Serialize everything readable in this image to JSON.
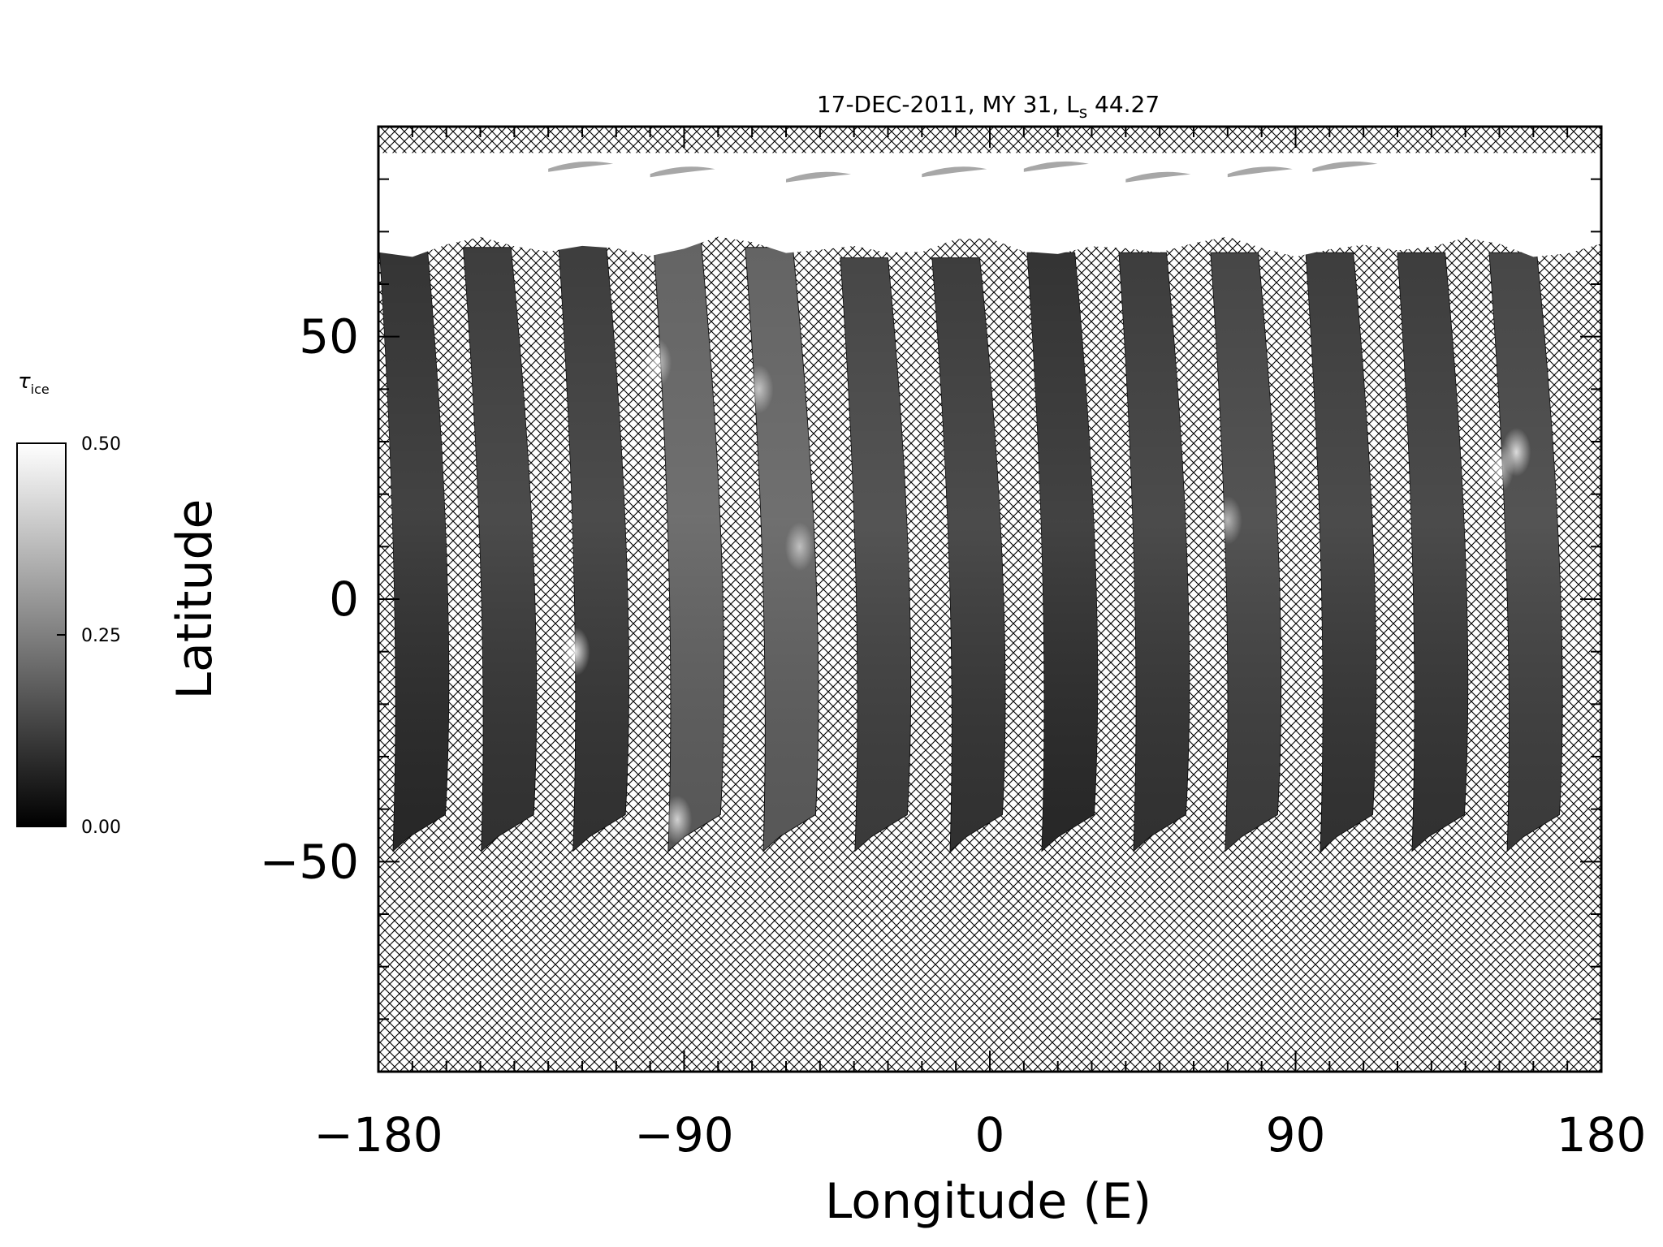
{
  "chart_data": {
    "type": "heatmap",
    "title_main": "17-DEC-2011, MY 31,  L",
    "title_sub": "s",
    "title_value": " 44.27",
    "xlabel": "Longitude (E)",
    "ylabel": "Latitude",
    "xlim": [
      -180,
      180
    ],
    "ylim": [
      -90,
      90
    ],
    "x_ticks": [
      -180,
      -90,
      0,
      90,
      180
    ],
    "x_tick_labels": [
      "−180",
      "−90",
      "0",
      "90",
      "180"
    ],
    "y_ticks": [
      -50,
      0,
      50
    ],
    "y_tick_labels": [
      "−50",
      "0",
      "50"
    ],
    "x_minor_step": 10,
    "y_minor_step": 10,
    "no_data_pattern": "crosshatch",
    "colorscale": "grayscale",
    "colorbar": {
      "label_main": "τ",
      "label_sub": "ice",
      "range": [
        0.0,
        0.5
      ],
      "ticks": [
        0.0,
        0.25,
        0.5
      ],
      "tick_labels": [
        "0.00",
        "0.25",
        "0.50"
      ]
    },
    "polar_cap_region": {
      "lat_min": 67,
      "lat_max": 85,
      "value": 0.5
    },
    "swaths": [
      {
        "lon_north": -180,
        "lon_south": -168,
        "lat_top": 70,
        "lat_bottom": -48,
        "width": 14,
        "mean_value": 0.08
      },
      {
        "lon_north": -155,
        "lon_south": -142,
        "lat_top": 67,
        "lat_bottom": -48,
        "width": 14,
        "mean_value": 0.1
      },
      {
        "lon_north": -127,
        "lon_south": -115,
        "lat_top": 68,
        "lat_bottom": -48,
        "width": 14,
        "mean_value": 0.1
      },
      {
        "lon_north": -99,
        "lon_south": -87,
        "lat_top": 68,
        "lat_bottom": -48,
        "width": 14,
        "mean_value": 0.18
      },
      {
        "lon_north": -72,
        "lon_south": -59,
        "lat_top": 67,
        "lat_bottom": -48,
        "width": 14,
        "mean_value": 0.18
      },
      {
        "lon_north": -44,
        "lon_south": -32,
        "lat_top": 65,
        "lat_bottom": -48,
        "width": 14,
        "mean_value": 0.12
      },
      {
        "lon_north": -17,
        "lon_south": -4,
        "lat_top": 65,
        "lat_bottom": -48,
        "width": 14,
        "mean_value": 0.1
      },
      {
        "lon_north": 11,
        "lon_south": 23,
        "lat_top": 66,
        "lat_bottom": -48,
        "width": 14,
        "mean_value": 0.08
      },
      {
        "lon_north": 38,
        "lon_south": 50,
        "lat_top": 66,
        "lat_bottom": -48,
        "width": 14,
        "mean_value": 0.1
      },
      {
        "lon_north": 65,
        "lon_south": 77,
        "lat_top": 66,
        "lat_bottom": -48,
        "width": 14,
        "mean_value": 0.12
      },
      {
        "lon_north": 93,
        "lon_south": 105,
        "lat_top": 66,
        "lat_bottom": -48,
        "width": 14,
        "mean_value": 0.1
      },
      {
        "lon_north": 120,
        "lon_south": 132,
        "lat_top": 66,
        "lat_bottom": -48,
        "width": 14,
        "mean_value": 0.1
      },
      {
        "lon_north": 147,
        "lon_south": 160,
        "lat_top": 66,
        "lat_bottom": -48,
        "width": 14,
        "mean_value": 0.12
      }
    ],
    "cloud_features": [
      {
        "lon": -98,
        "lat": 45,
        "value": 0.35
      },
      {
        "lon": -68,
        "lat": 40,
        "value": 0.32
      },
      {
        "lon": -122,
        "lat": -10,
        "value": 0.45
      },
      {
        "lon": -92,
        "lat": -42,
        "value": 0.38
      },
      {
        "lon": -56,
        "lat": 10,
        "value": 0.3
      },
      {
        "lon": 70,
        "lat": 15,
        "value": 0.3
      },
      {
        "lon": 155,
        "lat": 28,
        "value": 0.42
      },
      {
        "lon": 150,
        "lat": 25,
        "value": 0.35
      }
    ]
  }
}
